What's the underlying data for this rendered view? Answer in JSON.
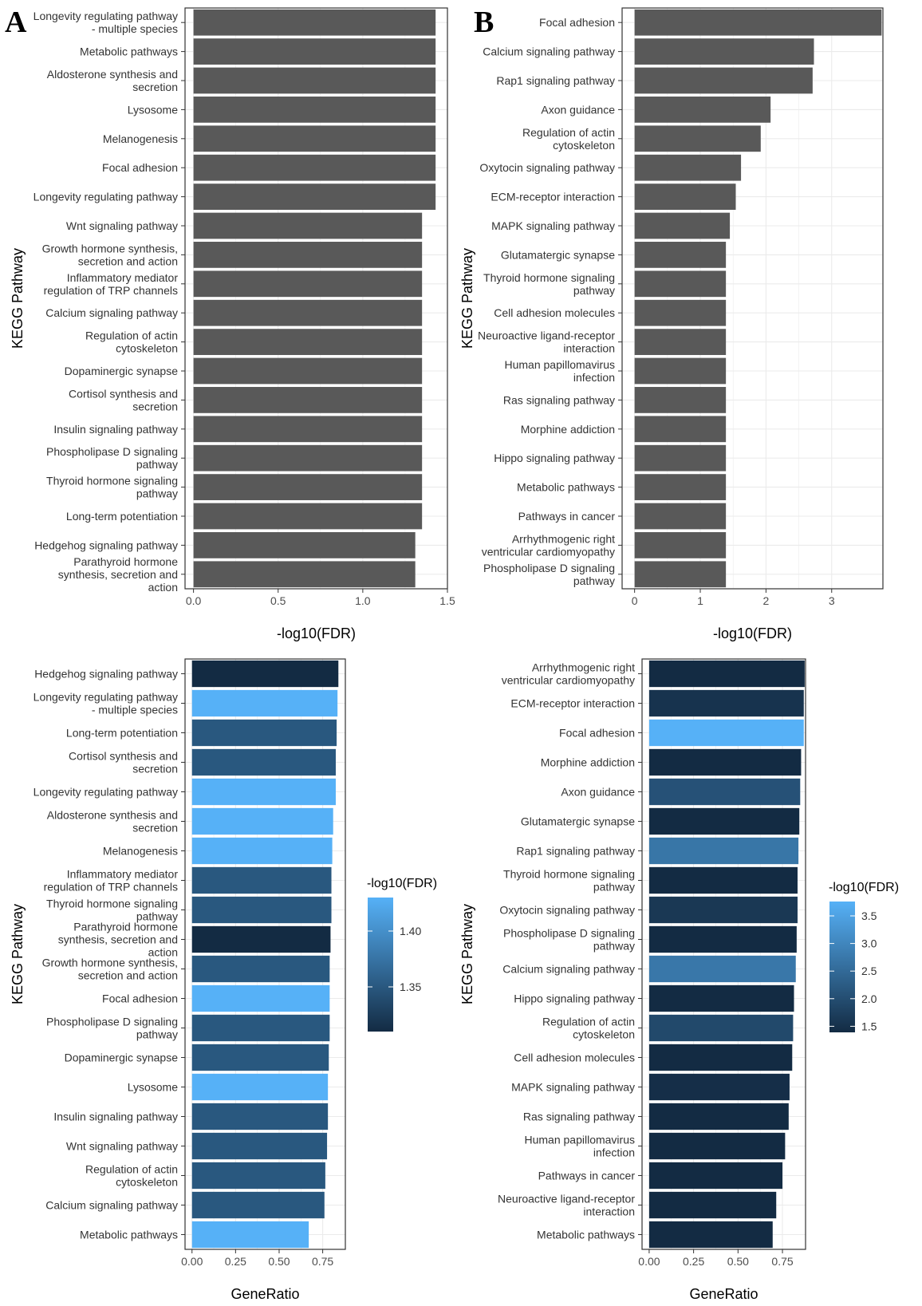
{
  "panel_labels": [
    "A",
    "B"
  ],
  "chart_data": [
    {
      "id": "A-top",
      "type": "bar",
      "orientation": "horizontal",
      "xlabel": "-log10(FDR)",
      "ylabel": "KEGG Pathway",
      "xlim": [
        -0.05,
        1.5
      ],
      "xticks": [
        0.0,
        0.5,
        1.0,
        1.5
      ],
      "xtick_labels": [
        "0.0",
        "0.5",
        "1.0",
        "1.5"
      ],
      "bar_color": "#595959",
      "categories": [
        [
          "Longevity regulating pathway",
          "- multiple species"
        ],
        [
          "Metabolic pathways"
        ],
        [
          "Aldosterone synthesis and",
          "secretion"
        ],
        [
          "Lysosome"
        ],
        [
          "Melanogenesis"
        ],
        [
          "Focal adhesion"
        ],
        [
          "Longevity regulating pathway"
        ],
        [
          "Wnt signaling pathway"
        ],
        [
          "Growth hormone synthesis,",
          "secretion and action"
        ],
        [
          "Inflammatory mediator",
          "regulation of TRP channels"
        ],
        [
          "Calcium signaling pathway"
        ],
        [
          "Regulation of actin",
          "cytoskeleton"
        ],
        [
          "Dopaminergic synapse"
        ],
        [
          "Cortisol synthesis and",
          "secretion"
        ],
        [
          "Insulin signaling pathway"
        ],
        [
          "Phospholipase D signaling",
          "pathway"
        ],
        [
          "Thyroid hormone signaling",
          "pathway"
        ],
        [
          "Long-term potentiation"
        ],
        [
          "Hedgehog signaling pathway"
        ],
        [
          "Parathyroid hormone",
          "synthesis, secretion and",
          "action"
        ]
      ],
      "values": [
        1.43,
        1.43,
        1.43,
        1.43,
        1.43,
        1.43,
        1.43,
        1.35,
        1.35,
        1.35,
        1.35,
        1.35,
        1.35,
        1.35,
        1.35,
        1.35,
        1.35,
        1.35,
        1.31,
        1.31
      ]
    },
    {
      "id": "B-top",
      "type": "bar",
      "orientation": "horizontal",
      "xlabel": "-log10(FDR)",
      "ylabel": "KEGG Pathway",
      "xlim": [
        -0.19,
        3.78
      ],
      "xticks": [
        0,
        1,
        2,
        3
      ],
      "xtick_labels": [
        "0",
        "1",
        "2",
        "3"
      ],
      "bar_color": "#595959",
      "categories": [
        [
          "Focal adhesion"
        ],
        [
          "Calcium signaling pathway"
        ],
        [
          "Rap1 signaling pathway"
        ],
        [
          "Axon guidance"
        ],
        [
          "Regulation of actin",
          "cytoskeleton"
        ],
        [
          "Oxytocin signaling pathway"
        ],
        [
          "ECM-receptor interaction"
        ],
        [
          "MAPK signaling pathway"
        ],
        [
          "Glutamatergic synapse"
        ],
        [
          "Thyroid hormone signaling",
          "pathway"
        ],
        [
          "Cell adhesion molecules"
        ],
        [
          "Neuroactive ligand-receptor",
          "interaction"
        ],
        [
          "Human papillomavirus",
          "infection"
        ],
        [
          "Ras signaling pathway"
        ],
        [
          "Morphine addiction"
        ],
        [
          "Hippo signaling pathway"
        ],
        [
          "Metabolic pathways"
        ],
        [
          "Pathways in cancer"
        ],
        [
          "Arrhythmogenic right",
          "ventricular cardiomyopathy"
        ],
        [
          "Phospholipase D signaling",
          "pathway"
        ]
      ],
      "values": [
        3.76,
        2.73,
        2.71,
        2.07,
        1.92,
        1.62,
        1.54,
        1.45,
        1.39,
        1.39,
        1.39,
        1.39,
        1.39,
        1.39,
        1.39,
        1.39,
        1.39,
        1.39,
        1.39,
        1.39
      ]
    },
    {
      "id": "A-bottom",
      "type": "bar",
      "orientation": "horizontal",
      "xlabel": "GeneRatio",
      "ylabel": "KEGG Pathway",
      "xlim": [
        -0.04,
        0.88
      ],
      "xticks": [
        0.0,
        0.25,
        0.5,
        0.75
      ],
      "xtick_labels": [
        "0.00",
        "0.25",
        "0.50",
        "0.75"
      ],
      "color_scale": {
        "title": "-log10(FDR)",
        "low_color": "#132b43",
        "high_color": "#56b1f7",
        "range": [
          1.31,
          1.43
        ],
        "ticks": [
          1.35,
          1.4
        ],
        "tick_labels": [
          "1.35",
          "1.40"
        ]
      },
      "categories": [
        [
          "Hedgehog signaling pathway"
        ],
        [
          "Longevity regulating pathway",
          "- multiple species"
        ],
        [
          "Long-term potentiation"
        ],
        [
          "Cortisol synthesis and",
          "secretion"
        ],
        [
          "Longevity regulating pathway"
        ],
        [
          "Aldosterone synthesis and",
          "secretion"
        ],
        [
          "Melanogenesis"
        ],
        [
          "Inflammatory mediator",
          "regulation of TRP channels"
        ],
        [
          "Thyroid hormone signaling",
          "pathway"
        ],
        [
          "Parathyroid hormone",
          "synthesis, secretion and",
          "action"
        ],
        [
          "Growth hormone synthesis,",
          "secretion and action"
        ],
        [
          "Focal adhesion"
        ],
        [
          "Phospholipase D signaling",
          "pathway"
        ],
        [
          "Dopaminergic synapse"
        ],
        [
          "Lysosome"
        ],
        [
          "Insulin signaling pathway"
        ],
        [
          "Wnt signaling pathway"
        ],
        [
          "Regulation of actin",
          "cytoskeleton"
        ],
        [
          "Calcium signaling pathway"
        ],
        [
          "Metabolic pathways"
        ]
      ],
      "values": [
        0.84,
        0.835,
        0.83,
        0.825,
        0.825,
        0.81,
        0.805,
        0.8,
        0.8,
        0.795,
        0.79,
        0.79,
        0.79,
        0.785,
        0.78,
        0.78,
        0.775,
        0.765,
        0.76,
        0.67
      ],
      "colors": [
        1.31,
        1.43,
        1.35,
        1.35,
        1.43,
        1.43,
        1.43,
        1.35,
        1.35,
        1.31,
        1.35,
        1.43,
        1.35,
        1.35,
        1.43,
        1.35,
        1.35,
        1.35,
        1.35,
        1.43
      ]
    },
    {
      "id": "B-bottom",
      "type": "bar",
      "orientation": "horizontal",
      "xlabel": "GeneRatio",
      "ylabel": "KEGG Pathway",
      "xlim": [
        -0.04,
        0.88
      ],
      "xticks": [
        0.0,
        0.25,
        0.5,
        0.75
      ],
      "xtick_labels": [
        "0.00",
        "0.25",
        "0.50",
        "0.75"
      ],
      "color_scale": {
        "title": "-log10(FDR)",
        "low_color": "#132b43",
        "high_color": "#56b1f7",
        "range": [
          1.39,
          3.76
        ],
        "ticks": [
          1.5,
          2.0,
          2.5,
          3.0,
          3.5
        ],
        "tick_labels": [
          "1.5",
          "2.0",
          "2.5",
          "3.0",
          "3.5"
        ]
      },
      "categories": [
        [
          "Arrhythmogenic right",
          "ventricular cardiomyopathy"
        ],
        [
          "ECM-receptor interaction"
        ],
        [
          "Focal adhesion"
        ],
        [
          "Morphine addiction"
        ],
        [
          "Axon guidance"
        ],
        [
          "Glutamatergic synapse"
        ],
        [
          "Rap1 signaling pathway"
        ],
        [
          "Thyroid hormone signaling",
          "pathway"
        ],
        [
          "Oxytocin signaling pathway"
        ],
        [
          "Phospholipase D signaling",
          "pathway"
        ],
        [
          "Calcium signaling pathway"
        ],
        [
          "Hippo signaling pathway"
        ],
        [
          "Regulation of actin",
          "cytoskeleton"
        ],
        [
          "Cell adhesion molecules"
        ],
        [
          "MAPK signaling pathway"
        ],
        [
          "Ras signaling pathway"
        ],
        [
          "Human papillomavirus",
          "infection"
        ],
        [
          "Pathways in cancer"
        ],
        [
          "Neuroactive ligand-receptor",
          "interaction"
        ],
        [
          "Metabolic pathways"
        ]
      ],
      "values": [
        0.875,
        0.87,
        0.87,
        0.855,
        0.85,
        0.845,
        0.84,
        0.835,
        0.835,
        0.83,
        0.825,
        0.815,
        0.81,
        0.805,
        0.79,
        0.785,
        0.765,
        0.75,
        0.715,
        0.695
      ],
      "colors": [
        1.39,
        1.54,
        3.76,
        1.39,
        2.07,
        1.39,
        2.71,
        1.39,
        1.62,
        1.39,
        2.73,
        1.39,
        1.92,
        1.39,
        1.45,
        1.39,
        1.39,
        1.39,
        1.39,
        1.39
      ]
    }
  ]
}
